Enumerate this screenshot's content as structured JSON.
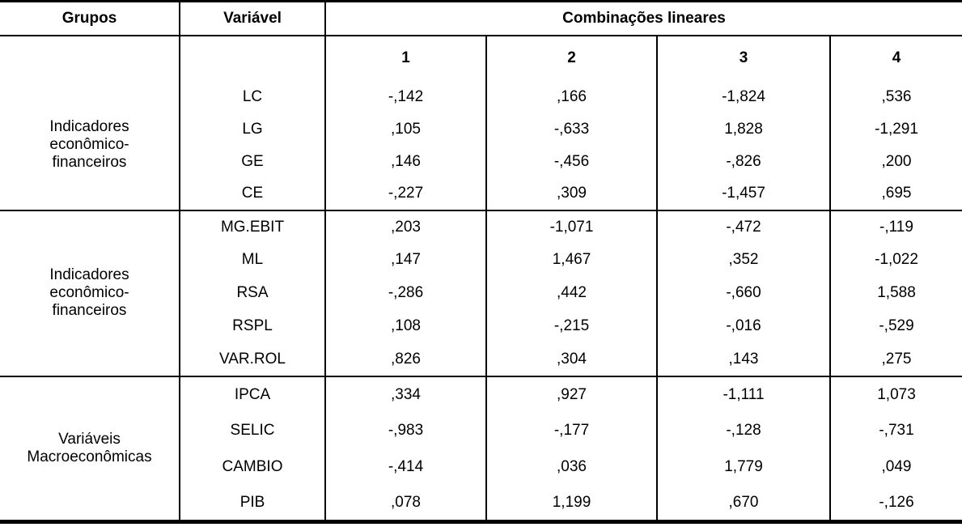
{
  "table": {
    "header": {
      "grupos": "Grupos",
      "variavel": "Variável",
      "combinacoes": "Combinações lineares",
      "combination_numbers": [
        "1",
        "2",
        "3",
        "4"
      ]
    },
    "groups": [
      {
        "label": "Indicadores\neconômico-\nfinanceiros",
        "rows": [
          {
            "variable": "LC",
            "values": [
              "-,142",
              ",166",
              "-1,824",
              ",536"
            ]
          },
          {
            "variable": "LG",
            "values": [
              ",105",
              "-,633",
              "1,828",
              "-1,291"
            ]
          },
          {
            "variable": "GE",
            "values": [
              ",146",
              "-,456",
              "-,826",
              ",200"
            ]
          },
          {
            "variable": "CE",
            "values": [
              "-,227",
              ",309",
              "-1,457",
              ",695"
            ]
          }
        ]
      },
      {
        "label": "Indicadores\neconômico-\nfinanceiros",
        "rows": [
          {
            "variable": "MG.EBIT",
            "values": [
              ",203",
              "-1,071",
              "-,472",
              "-,119"
            ]
          },
          {
            "variable": "ML",
            "values": [
              ",147",
              "1,467",
              ",352",
              "-1,022"
            ]
          },
          {
            "variable": "RSA",
            "values": [
              "-,286",
              ",442",
              "-,660",
              "1,588"
            ]
          },
          {
            "variable": "RSPL",
            "values": [
              ",108",
              "-,215",
              "-,016",
              "-,529"
            ]
          },
          {
            "variable": "VAR.ROL",
            "values": [
              ",826",
              ",304",
              ",143",
              ",275"
            ]
          }
        ]
      },
      {
        "label": "Variáveis\nMacroeconômicas",
        "rows": [
          {
            "variable": "IPCA",
            "values": [
              ",334",
              ",927",
              "-1,111",
              "1,073"
            ]
          },
          {
            "variable": "SELIC",
            "values": [
              "-,983",
              "-,177",
              "-,128",
              "-,731"
            ]
          },
          {
            "variable": "CAMBIO",
            "values": [
              "-,414",
              ",036",
              "1,779",
              ",049"
            ]
          },
          {
            "variable": "PIB",
            "values": [
              ",078",
              "1,199",
              ",670",
              "-,126"
            ]
          }
        ]
      }
    ],
    "colors": {
      "border": "#000000",
      "text": "#000000",
      "background": "#ffffff"
    }
  }
}
